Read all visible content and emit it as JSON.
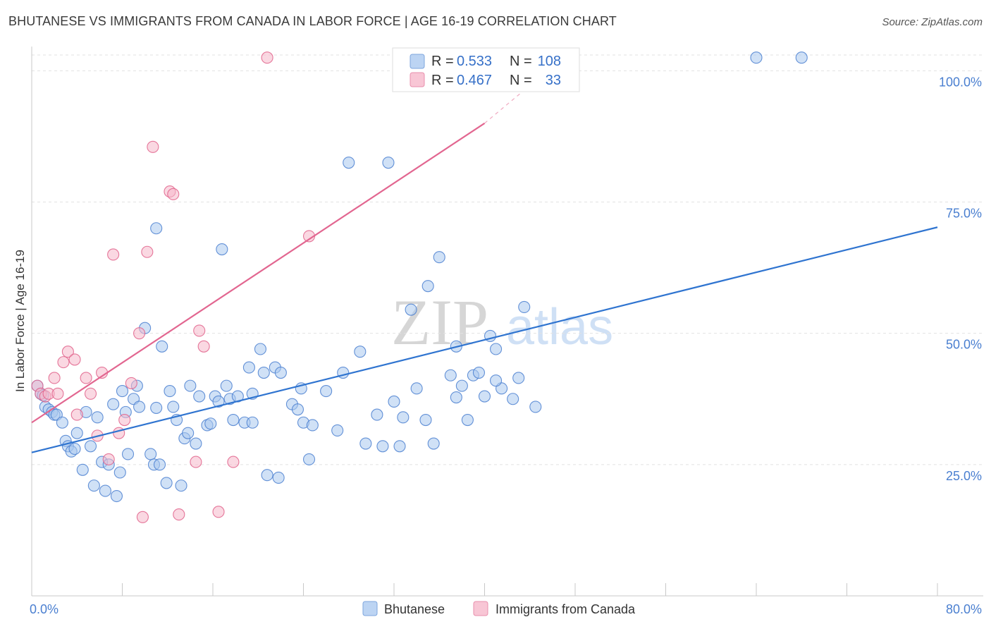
{
  "chart_data": {
    "type": "scatter",
    "title": "BHUTANESE VS IMMIGRANTS FROM CANADA IN LABOR FORCE | AGE 16-19 CORRELATION CHART",
    "source": "Source: ZipAtlas.com",
    "xlabel": "",
    "ylabel": "In Labor Force | Age 16-19",
    "xlim": [
      0,
      80
    ],
    "ylim": [
      0,
      103
    ],
    "x_tick_labels": [
      {
        "value": 0,
        "label": "0.0%"
      },
      {
        "value": 80,
        "label": "80.0%"
      }
    ],
    "y_tick_labels": [
      {
        "value": 25,
        "label": "25.0%"
      },
      {
        "value": 50,
        "label": "50.0%"
      },
      {
        "value": 75,
        "label": "75.0%"
      },
      {
        "value": 100,
        "label": "100.0%"
      }
    ],
    "watermark": {
      "part1": "ZIP",
      "part2": "atlas"
    },
    "stats": [
      {
        "r_label": "R =",
        "r_value": "0.533",
        "n_label": "N =",
        "n_value": "108"
      },
      {
        "r_label": "R =",
        "r_value": "0.467",
        "n_label": "N =",
        "n_value": "33"
      }
    ],
    "series": [
      {
        "name": "Bhutanese",
        "color": "#4a7fd0",
        "fill": "#aac8ee",
        "trend": {
          "x0": 0,
          "y0": 27.3,
          "x1": 80,
          "y1": 70.2
        },
        "points": [
          [
            0.5,
            40.0
          ],
          [
            0.8,
            38.5
          ],
          [
            1.0,
            38.2
          ],
          [
            1.2,
            36.0
          ],
          [
            1.5,
            35.5
          ],
          [
            1.8,
            35.0
          ],
          [
            2.0,
            34.5
          ],
          [
            2.2,
            34.5
          ],
          [
            2.7,
            33.0
          ],
          [
            3.0,
            29.5
          ],
          [
            3.2,
            28.5
          ],
          [
            3.5,
            27.5
          ],
          [
            3.8,
            28.0
          ],
          [
            4.0,
            31.0
          ],
          [
            4.5,
            24.0
          ],
          [
            4.8,
            35.0
          ],
          [
            5.2,
            28.5
          ],
          [
            5.5,
            21.0
          ],
          [
            5.8,
            34.0
          ],
          [
            6.2,
            25.5
          ],
          [
            6.5,
            20.0
          ],
          [
            6.8,
            25.0
          ],
          [
            7.2,
            36.5
          ],
          [
            7.5,
            19.0
          ],
          [
            7.8,
            23.5
          ],
          [
            8.0,
            39.0
          ],
          [
            8.3,
            35.0
          ],
          [
            8.5,
            27.0
          ],
          [
            9.0,
            37.5
          ],
          [
            9.3,
            40.0
          ],
          [
            9.5,
            36.0
          ],
          [
            10.0,
            51.0
          ],
          [
            10.5,
            27.0
          ],
          [
            10.8,
            25.0
          ],
          [
            11.0,
            70.0
          ],
          [
            11.3,
            25.0
          ],
          [
            11.5,
            47.5
          ],
          [
            11.9,
            21.5
          ],
          [
            12.2,
            39.0
          ],
          [
            12.5,
            36.0
          ],
          [
            12.8,
            33.5
          ],
          [
            13.2,
            21.0
          ],
          [
            13.5,
            30.0
          ],
          [
            13.8,
            31.0
          ],
          [
            14.0,
            40.0
          ],
          [
            14.5,
            29.0
          ],
          [
            14.8,
            38.0
          ],
          [
            15.5,
            32.5
          ],
          [
            15.8,
            32.8
          ],
          [
            16.2,
            38.0
          ],
          [
            16.5,
            37.0
          ],
          [
            16.8,
            66.0
          ],
          [
            17.2,
            40.0
          ],
          [
            17.5,
            37.5
          ],
          [
            17.8,
            33.5
          ],
          [
            18.2,
            38.0
          ],
          [
            18.8,
            33.0
          ],
          [
            19.2,
            43.5
          ],
          [
            19.5,
            38.5
          ],
          [
            20.2,
            47.0
          ],
          [
            20.5,
            42.5
          ],
          [
            20.8,
            23.0
          ],
          [
            21.5,
            43.5
          ],
          [
            22.0,
            42.5
          ],
          [
            23.0,
            36.5
          ],
          [
            23.5,
            35.5
          ],
          [
            21.8,
            22.5
          ],
          [
            24.0,
            33.0
          ],
          [
            24.5,
            26.0
          ],
          [
            23.8,
            39.5
          ],
          [
            26.0,
            39.0
          ],
          [
            27.0,
            31.5
          ],
          [
            27.5,
            42.5
          ],
          [
            28.0,
            82.5
          ],
          [
            29.0,
            46.5
          ],
          [
            29.5,
            29.0
          ],
          [
            30.5,
            34.5
          ],
          [
            31.0,
            28.5
          ],
          [
            31.5,
            82.5
          ],
          [
            32.0,
            37.0
          ],
          [
            32.5,
            28.5
          ],
          [
            32.8,
            34.0
          ],
          [
            33.5,
            54.5
          ],
          [
            34.0,
            39.5
          ],
          [
            34.8,
            33.5
          ],
          [
            35.0,
            59.0
          ],
          [
            35.5,
            29.0
          ],
          [
            36.0,
            64.5
          ],
          [
            37.0,
            42.0
          ],
          [
            37.5,
            47.5
          ],
          [
            38.0,
            40.0
          ],
          [
            39.0,
            42.0
          ],
          [
            39.5,
            42.5
          ],
          [
            38.5,
            33.5
          ],
          [
            40.0,
            38.0
          ],
          [
            40.5,
            49.5
          ],
          [
            41.0,
            47.0
          ],
          [
            41.5,
            39.5
          ],
          [
            42.5,
            37.5
          ],
          [
            43.0,
            41.5
          ],
          [
            43.5,
            55.0
          ],
          [
            44.5,
            36.0
          ],
          [
            64.0,
            102.5
          ],
          [
            68.0,
            102.5
          ],
          [
            41.0,
            41.0
          ],
          [
            37.5,
            37.8
          ],
          [
            19.5,
            33.0
          ],
          [
            11.0,
            35.8
          ],
          [
            24.8,
            32.5
          ]
        ]
      },
      {
        "name": "Immigrants from Canada",
        "color": "#e0608a",
        "fill": "#f5b8cb",
        "trend": {
          "x0": 0,
          "y0": 33.0,
          "x1": 40,
          "y1": 90.0
        },
        "trend_dash_to": {
          "x": 45,
          "y": 99.0
        },
        "points": [
          [
            0.5,
            40.0
          ],
          [
            0.8,
            38.5
          ],
          [
            1.2,
            38.0
          ],
          [
            1.5,
            38.5
          ],
          [
            2.0,
            41.5
          ],
          [
            2.3,
            38.5
          ],
          [
            2.8,
            44.5
          ],
          [
            3.2,
            46.5
          ],
          [
            3.8,
            45.0
          ],
          [
            4.0,
            34.5
          ],
          [
            4.8,
            41.5
          ],
          [
            5.2,
            38.5
          ],
          [
            5.8,
            30.5
          ],
          [
            6.2,
            42.5
          ],
          [
            6.8,
            26.0
          ],
          [
            7.2,
            65.0
          ],
          [
            7.7,
            31.0
          ],
          [
            8.2,
            33.5
          ],
          [
            8.8,
            40.5
          ],
          [
            9.5,
            50.0
          ],
          [
            9.8,
            15.0
          ],
          [
            10.2,
            65.5
          ],
          [
            10.7,
            85.5
          ],
          [
            12.2,
            77.0
          ],
          [
            12.5,
            76.5
          ],
          [
            13.0,
            15.5
          ],
          [
            14.5,
            25.5
          ],
          [
            14.8,
            50.5
          ],
          [
            15.2,
            47.5
          ],
          [
            16.5,
            16.0
          ],
          [
            17.8,
            25.5
          ],
          [
            20.8,
            102.5
          ],
          [
            24.5,
            68.5
          ]
        ]
      }
    ]
  }
}
